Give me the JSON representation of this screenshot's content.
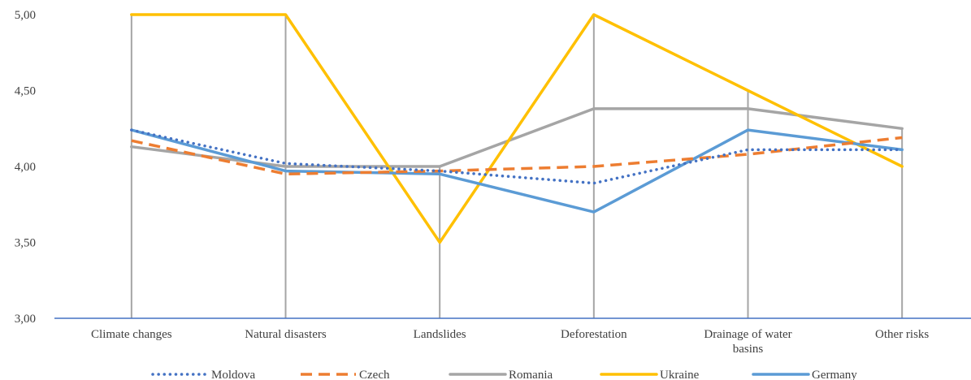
{
  "chart_data": {
    "type": "line",
    "title": "",
    "xlabel": "",
    "ylabel": "",
    "categories": [
      [
        "Climate changes"
      ],
      [
        "Natural disasters"
      ],
      [
        "Landslides"
      ],
      [
        "Deforestation"
      ],
      [
        "Drainage of water",
        "basins"
      ],
      [
        "Other risks"
      ]
    ],
    "ylim": [
      3.0,
      5.0
    ],
    "yticks": [
      "3,00",
      "3,50",
      "4,00",
      "4,50",
      "5,00"
    ],
    "ytick_values": [
      3.0,
      3.5,
      4.0,
      4.5,
      5.0
    ],
    "grid": false,
    "legend": "bottom",
    "series": [
      {
        "name": "Moldova",
        "values": [
          4.24,
          4.02,
          3.97,
          3.89,
          4.11,
          4.11
        ],
        "color": "#4472C4",
        "style": "dotted"
      },
      {
        "name": "Czech",
        "values": [
          4.17,
          3.95,
          3.97,
          4.0,
          4.08,
          4.19
        ],
        "color": "#ED7D31",
        "style": "dashed"
      },
      {
        "name": "Romania",
        "values": [
          4.13,
          4.0,
          4.0,
          4.38,
          4.38,
          4.25
        ],
        "color": "#A5A5A5",
        "style": "solid"
      },
      {
        "name": "Ukraine",
        "values": [
          5.0,
          5.0,
          3.5,
          5.0,
          4.5,
          4.0
        ],
        "color": "#FFC000",
        "style": "solid"
      },
      {
        "name": "Germany",
        "values": [
          4.24,
          3.97,
          3.95,
          3.7,
          4.24,
          4.11
        ],
        "color": "#5B9BD5",
        "style": "solid"
      }
    ]
  }
}
